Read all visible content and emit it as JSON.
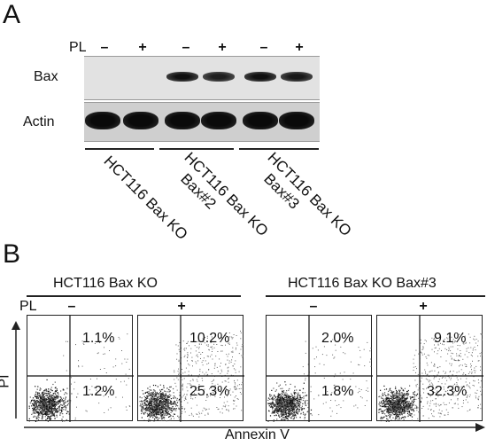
{
  "panel_a": {
    "letter": "A",
    "pl_label": "PL",
    "lanes": [
      "–",
      "+",
      "–",
      "+",
      "–",
      "+"
    ],
    "rows": [
      {
        "label": "Bax",
        "intensity": [
          0,
          0,
          1,
          0.85,
          1,
          0.9
        ]
      },
      {
        "label": "Actin",
        "intensity": [
          1,
          1,
          1,
          1,
          1,
          1
        ]
      }
    ],
    "groups": [
      {
        "lines": [
          "HCT116 Bax KO"
        ]
      },
      {
        "lines": [
          "HCT116 Bax KO",
          "Bax#2"
        ]
      },
      {
        "lines": [
          "HCT116 Bax KO",
          "Bax#3"
        ]
      }
    ]
  },
  "panel_b": {
    "letter": "B",
    "pl_label": "PL",
    "y_axis_label": "PI",
    "x_axis_label": "Annexin V",
    "groups": [
      "HCT116 Bax KO",
      "HCT116 Bax KO Bax#3"
    ],
    "plots": [
      {
        "treatment": "–",
        "upper_right": "1.1%",
        "lower_right": "1.2%"
      },
      {
        "treatment": "+",
        "upper_right": "10.2%",
        "lower_right": "25.3%"
      },
      {
        "treatment": "–",
        "upper_right": "2.0%",
        "lower_right": "1.8%"
      },
      {
        "treatment": "+",
        "upper_right": "9.1%",
        "lower_right": "32.3%"
      }
    ]
  }
}
